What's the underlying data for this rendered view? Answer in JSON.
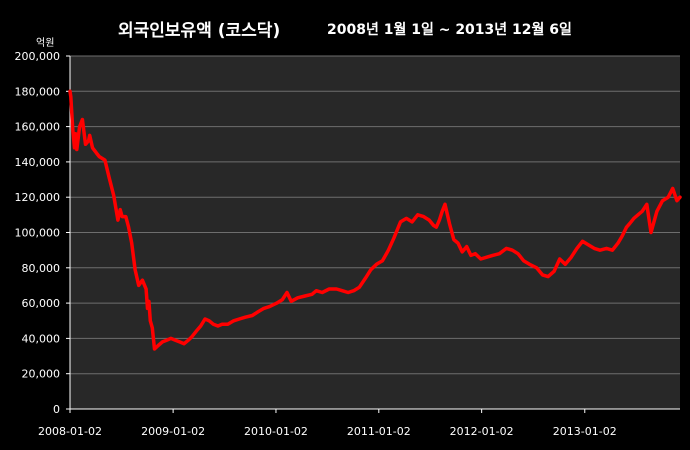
{
  "colors": {
    "background": "#000000",
    "plot_area": "#282828",
    "gridline": "#6e6e6e",
    "series": "#ff0000",
    "text": "#ffffff"
  },
  "chart_data": {
    "type": "line",
    "title": "외국인보유액 (코스닥)",
    "subtitle": "2008년 1월 1일 ~ 2013년 12월 6일",
    "ylabel": "억원",
    "xlabel": "",
    "ylim": [
      0,
      200000
    ],
    "y_ticks": [
      0,
      20000,
      40000,
      60000,
      80000,
      100000,
      120000,
      140000,
      160000,
      180000,
      200000
    ],
    "y_tick_labels": [
      "0",
      "20,000",
      "40,000",
      "60,000",
      "80,000",
      "100,000",
      "120,000",
      "140,000",
      "160,000",
      "180,000",
      "200,000"
    ],
    "x_ticks": [
      "2008-01-02",
      "2009-01-02",
      "2010-01-02",
      "2011-01-02",
      "2012-01-02",
      "2013-01-02"
    ],
    "xlim": [
      "2008-01-02",
      "2013-12-06"
    ],
    "grid": "horizontal",
    "legend": "none",
    "series": [
      {
        "x": [
          "2008-01-02",
          "2008-01-05",
          "2008-01-12",
          "2008-01-18",
          "2008-01-22",
          "2008-01-26",
          "2008-02-05",
          "2008-02-15",
          "2008-02-26",
          "2008-03-08",
          "2008-03-12",
          "2008-03-22",
          "2008-04-05",
          "2008-04-15",
          "2008-05-05",
          "2008-05-20",
          "2008-06-05",
          "2008-06-20",
          "2008-06-28",
          "2008-07-05",
          "2008-07-18",
          "2008-07-28",
          "2008-08-08",
          "2008-08-20",
          "2008-09-02",
          "2008-09-15",
          "2008-09-28",
          "2008-10-03",
          "2008-10-08",
          "2008-10-13",
          "2008-10-20",
          "2008-10-28",
          "2008-11-10",
          "2008-11-25",
          "2008-12-10",
          "2008-12-25",
          "2009-01-10",
          "2009-01-25",
          "2009-02-10",
          "2009-02-25",
          "2009-03-10",
          "2009-03-25",
          "2009-04-10",
          "2009-04-25",
          "2009-05-10",
          "2009-05-25",
          "2009-06-10",
          "2009-06-25",
          "2009-07-15",
          "2009-08-05",
          "2009-08-25",
          "2009-09-15",
          "2009-10-10",
          "2009-10-30",
          "2009-11-20",
          "2009-12-10",
          "2010-01-05",
          "2010-01-25",
          "2010-02-10",
          "2010-02-25",
          "2010-03-20",
          "2010-04-15",
          "2010-05-10",
          "2010-05-25",
          "2010-06-15",
          "2010-07-10",
          "2010-08-05",
          "2010-08-25",
          "2010-09-15",
          "2010-10-05",
          "2010-10-25",
          "2010-11-15",
          "2010-12-05",
          "2010-12-25",
          "2011-01-15",
          "2011-02-05",
          "2011-02-25",
          "2011-03-20",
          "2011-04-10",
          "2011-04-30",
          "2011-05-20",
          "2011-06-10",
          "2011-06-30",
          "2011-07-15",
          "2011-07-25",
          "2011-08-05",
          "2011-08-15",
          "2011-08-25",
          "2011-09-10",
          "2011-09-25",
          "2011-10-10",
          "2011-10-25",
          "2011-11-10",
          "2011-11-25",
          "2011-12-10",
          "2011-12-30",
          "2012-01-20",
          "2012-02-10",
          "2012-03-05",
          "2012-03-30",
          "2012-04-20",
          "2012-05-10",
          "2012-05-30",
          "2012-06-20",
          "2012-07-15",
          "2012-08-05",
          "2012-08-25",
          "2012-09-15",
          "2012-10-05",
          "2012-10-25",
          "2012-11-15",
          "2012-12-05",
          "2012-12-25",
          "2013-01-15",
          "2013-02-05",
          "2013-02-25",
          "2013-03-20",
          "2013-04-10",
          "2013-04-30",
          "2013-05-15",
          "2013-05-30",
          "2013-06-10",
          "2013-06-25",
          "2013-07-10",
          "2013-07-25",
          "2013-08-10",
          "2013-08-25",
          "2013-09-15",
          "2013-10-05",
          "2013-10-25",
          "2013-11-10",
          "2013-11-25",
          "2013-12-06"
        ],
        "y": [
          180000,
          177000,
          158000,
          148000,
          156000,
          147000,
          160000,
          164000,
          150000,
          152000,
          155000,
          148000,
          145000,
          143000,
          141000,
          131000,
          121000,
          107000,
          113000,
          109000,
          109000,
          103000,
          94000,
          79000,
          70000,
          73000,
          68000,
          57000,
          61000,
          50000,
          46000,
          34000,
          36000,
          38000,
          39000,
          40000,
          39000,
          38000,
          37000,
          39000,
          41000,
          44000,
          47000,
          51000,
          50000,
          48000,
          47000,
          48000,
          48000,
          50000,
          51000,
          52000,
          53000,
          55000,
          57000,
          58000,
          60000,
          62000,
          66000,
          61000,
          63000,
          64000,
          65000,
          67000,
          66000,
          68000,
          68000,
          67000,
          66000,
          67000,
          69000,
          74000,
          79000,
          82000,
          84000,
          90000,
          97000,
          106000,
          108000,
          106000,
          110000,
          109000,
          107000,
          104000,
          103000,
          107000,
          112000,
          116000,
          105000,
          96000,
          94000,
          89000,
          92000,
          87000,
          88000,
          85000,
          86000,
          87000,
          88000,
          91000,
          90000,
          88000,
          84000,
          82000,
          80000,
          76000,
          75000,
          78000,
          85000,
          82000,
          86000,
          91000,
          95000,
          93000,
          91000,
          90000,
          91000,
          90000,
          94000,
          98000,
          103000,
          105000,
          108000,
          110000,
          112000,
          116000,
          100000,
          112000,
          118000,
          120000,
          125000,
          118000,
          120000
        ],
        "name": ""
      }
    ]
  }
}
